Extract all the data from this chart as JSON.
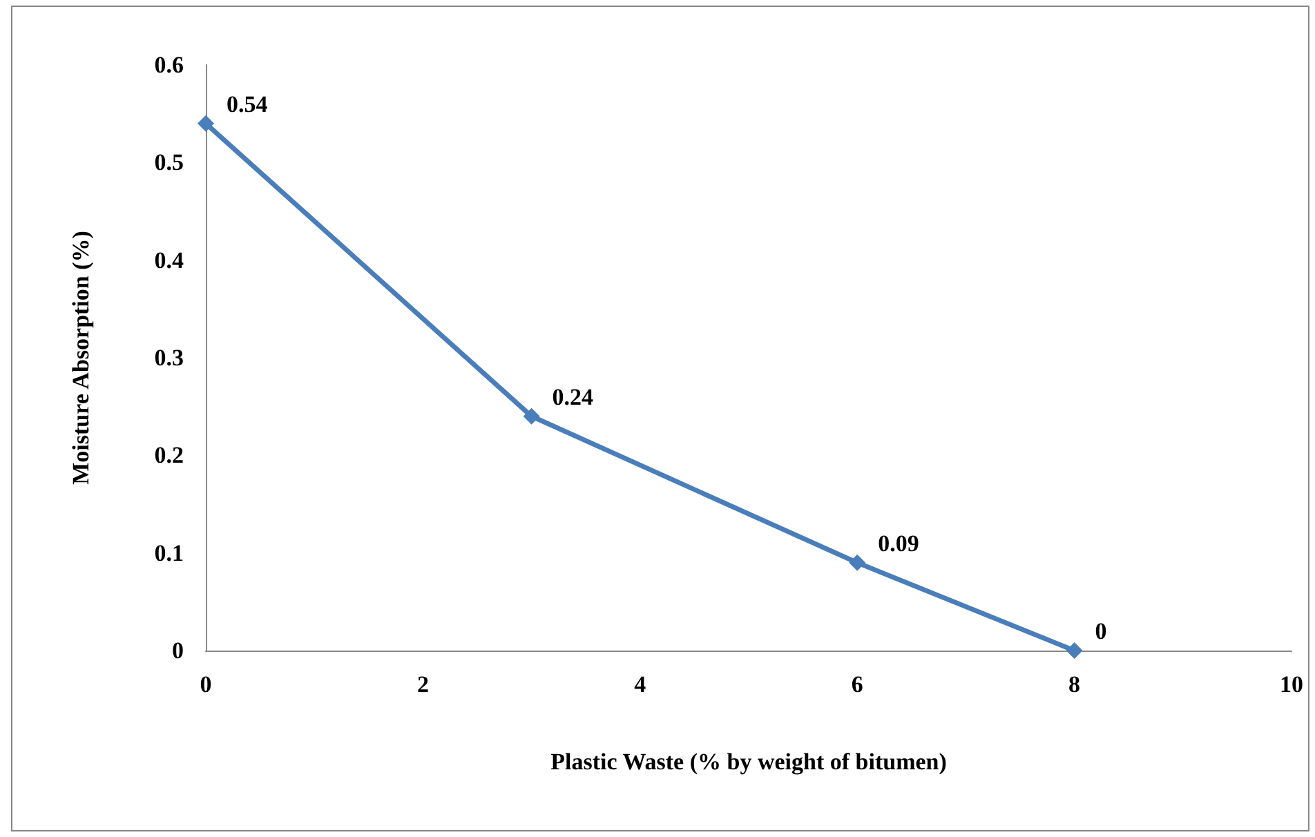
{
  "chart_data": {
    "type": "line",
    "xlabel": "Plastic Waste (% by weight of bitumen)",
    "ylabel": "Moisture Absorption (%)",
    "x": [
      0,
      3,
      6,
      8
    ],
    "series": [
      {
        "color": "#4a7ebb",
        "values": [
          0.54,
          0.24,
          0.09,
          0
        ]
      }
    ],
    "xlim": [
      0,
      10
    ],
    "xticks": [
      0,
      2,
      4,
      6,
      8,
      10
    ],
    "ylim": [
      0,
      0.6
    ],
    "yticks": [
      0,
      0.1,
      0.2,
      0.3,
      0.4,
      0.5,
      0.6
    ],
    "grid": false,
    "marker": "diamond",
    "line_style": "solid",
    "data_labels": true
  }
}
